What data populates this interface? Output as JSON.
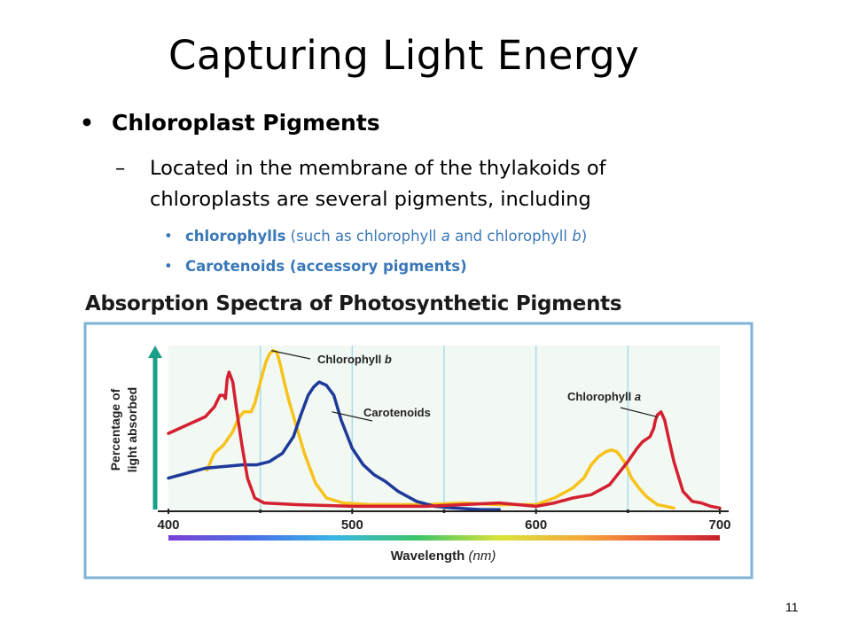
{
  "slide": {
    "title": "Capturing Light Energy",
    "bullet1": "Chloroplast Pigments",
    "bullet1_marker": "•",
    "bullet2_marker": "–",
    "bullet2": "Located in the membrane of the thylakoids of chloroplasts are several pigments, including",
    "sub_marker": "•",
    "sub1": {
      "bold": "chlorophylls",
      "pre": " (such as chlorophyll ",
      "a": "a",
      "mid": " and chlorophyll ",
      "b": "b",
      "post": ")"
    },
    "sub2": "Carotenoids (accessory pigments)",
    "page_number": "11"
  },
  "colors": {
    "blue_text": "#3a78b8",
    "chlorophyll_a": "#d42030",
    "chlorophyll_b": "#f7c21a",
    "carotenoids": "#1e3a9a",
    "frame": "#7fb3d5",
    "plot_bg": "#f2f8f2",
    "grid": "#aadcf0",
    "arrow": "#1aa088"
  },
  "chart_data": {
    "type": "line",
    "title": "Absorption Spectra of Photosynthetic Pigments",
    "xlabel": "Wavelength",
    "xlabel_unit": "(nm)",
    "ylabel_line1": "Percentage of",
    "ylabel_line2": "light absorbed",
    "xlim": [
      400,
      700
    ],
    "ylim": [
      0,
      100
    ],
    "xticks": [
      400,
      500,
      600,
      700
    ],
    "minor_ticks": [
      450,
      550,
      650
    ],
    "grid_x": [
      450,
      500,
      550,
      600,
      650
    ],
    "series": [
      {
        "name": "Chlorophyll a",
        "label_text": "Chlorophyll ",
        "label_italic": "a",
        "points": [
          [
            400,
            47
          ],
          [
            412,
            53
          ],
          [
            420,
            57
          ],
          [
            425,
            63
          ],
          [
            428,
            70
          ],
          [
            430,
            70
          ],
          [
            431,
            68
          ],
          [
            432,
            80
          ],
          [
            433,
            84
          ],
          [
            435,
            78
          ],
          [
            437,
            62
          ],
          [
            440,
            40
          ],
          [
            443,
            20
          ],
          [
            447,
            8
          ],
          [
            452,
            5
          ],
          [
            470,
            4
          ],
          [
            500,
            3
          ],
          [
            520,
            3
          ],
          [
            540,
            3
          ],
          [
            560,
            4
          ],
          [
            580,
            5
          ],
          [
            590,
            4
          ],
          [
            600,
            3
          ],
          [
            610,
            5
          ],
          [
            620,
            8
          ],
          [
            630,
            10
          ],
          [
            640,
            16
          ],
          [
            650,
            30
          ],
          [
            655,
            38
          ],
          [
            658,
            42
          ],
          [
            662,
            45
          ],
          [
            664,
            50
          ],
          [
            665,
            55
          ],
          [
            666,
            58
          ],
          [
            668,
            60
          ],
          [
            670,
            55
          ],
          [
            672,
            45
          ],
          [
            675,
            30
          ],
          [
            680,
            12
          ],
          [
            685,
            6
          ],
          [
            690,
            5
          ],
          [
            695,
            3
          ],
          [
            700,
            2
          ]
        ]
      },
      {
        "name": "Chlorophyll b",
        "label_text": "Chlorophyll ",
        "label_italic": "b",
        "points": [
          [
            421,
            25
          ],
          [
            425,
            35
          ],
          [
            430,
            40
          ],
          [
            435,
            48
          ],
          [
            438,
            56
          ],
          [
            441,
            60
          ],
          [
            445,
            60
          ],
          [
            447,
            65
          ],
          [
            450,
            78
          ],
          [
            453,
            90
          ],
          [
            455,
            95
          ],
          [
            457,
            97
          ],
          [
            459,
            96
          ],
          [
            461,
            88
          ],
          [
            463,
            78
          ],
          [
            466,
            65
          ],
          [
            470,
            50
          ],
          [
            474,
            35
          ],
          [
            480,
            17
          ],
          [
            486,
            8
          ],
          [
            495,
            5
          ],
          [
            510,
            4
          ],
          [
            540,
            4
          ],
          [
            560,
            5
          ],
          [
            580,
            4
          ],
          [
            600,
            4
          ],
          [
            610,
            8
          ],
          [
            620,
            14
          ],
          [
            626,
            20
          ],
          [
            630,
            28
          ],
          [
            634,
            33
          ],
          [
            638,
            36
          ],
          [
            641,
            37
          ],
          [
            644,
            36
          ],
          [
            648,
            30
          ],
          [
            652,
            20
          ],
          [
            656,
            14
          ],
          [
            660,
            9
          ],
          [
            666,
            4
          ],
          [
            675,
            2
          ]
        ]
      },
      {
        "name": "Carotenoids",
        "label_text": "Carotenoids",
        "label_italic": "",
        "points": [
          [
            400,
            20
          ],
          [
            410,
            23
          ],
          [
            420,
            26
          ],
          [
            430,
            27
          ],
          [
            440,
            28
          ],
          [
            448,
            28
          ],
          [
            455,
            30
          ],
          [
            462,
            35
          ],
          [
            465,
            40
          ],
          [
            468,
            45
          ],
          [
            472,
            58
          ],
          [
            476,
            70
          ],
          [
            479,
            75
          ],
          [
            482,
            78
          ],
          [
            486,
            76
          ],
          [
            490,
            70
          ],
          [
            494,
            55
          ],
          [
            500,
            38
          ],
          [
            506,
            28
          ],
          [
            512,
            22
          ],
          [
            518,
            18
          ],
          [
            525,
            12
          ],
          [
            535,
            6
          ],
          [
            545,
            3
          ],
          [
            555,
            2
          ],
          [
            570,
            1
          ],
          [
            580,
            1
          ]
        ]
      }
    ],
    "annotations": [
      {
        "series": "Chlorophyll b",
        "x": 456,
        "y": 97
      },
      {
        "series": "Carotenoids",
        "x": 489,
        "y": 60
      },
      {
        "series": "Chlorophyll a",
        "x": 666,
        "y": 57
      }
    ],
    "colorbar": "visible spectrum (violet to red)",
    "grid": true
  }
}
